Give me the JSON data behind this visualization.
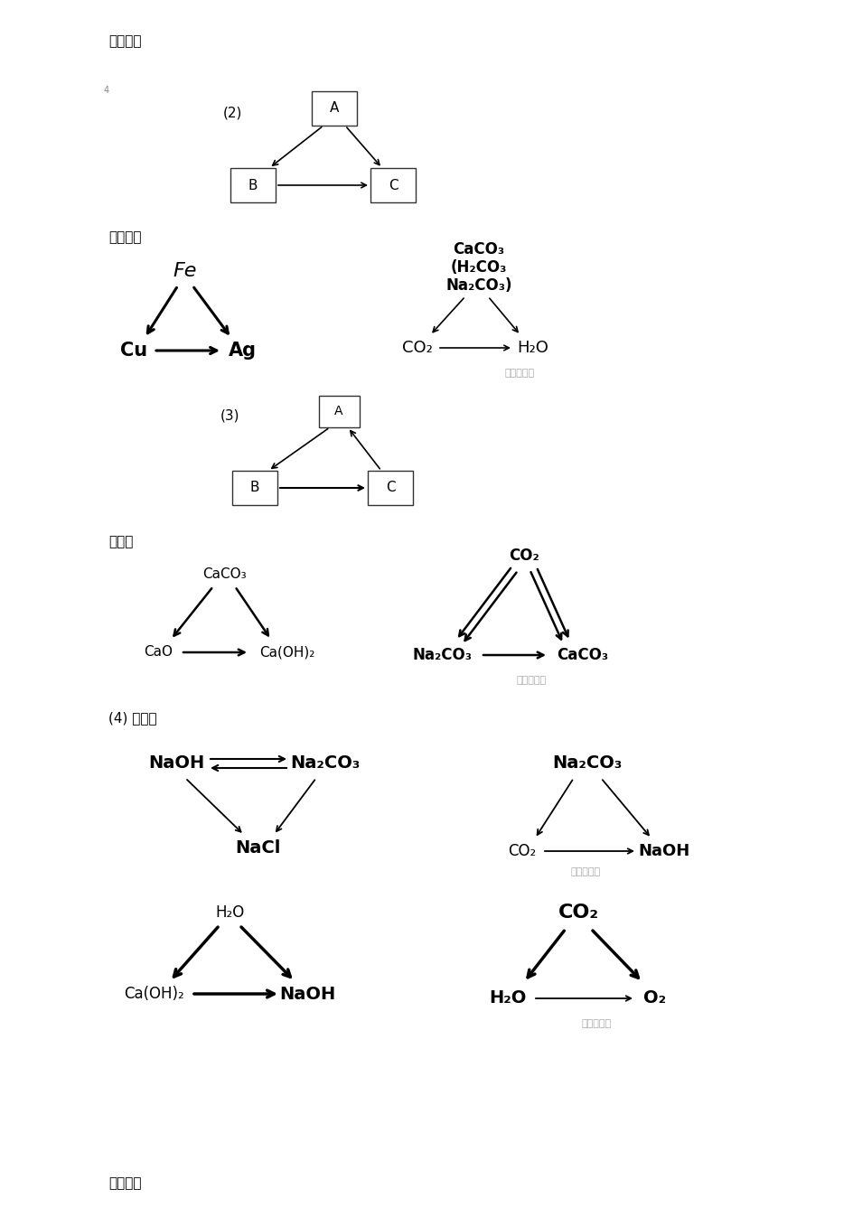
{
  "bg_color": "#ffffff",
  "page_label": "精品文档",
  "section2_label": "(2)",
  "section3_label": "(3)",
  "section4_label": "(4) 其它：",
  "metal_label": "金属三角",
  "calcium_label": "钙三角",
  "watermark": "九年级化学",
  "fig_w": 9.45,
  "fig_h": 13.37,
  "dpi": 100
}
